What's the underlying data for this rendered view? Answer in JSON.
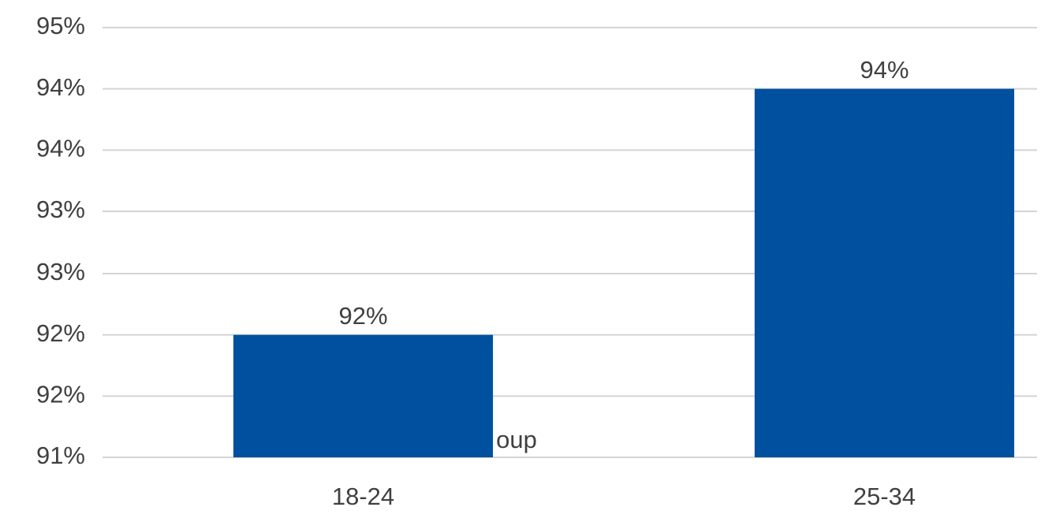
{
  "chart_data": {
    "type": "bar",
    "categories": [
      "18-24",
      "25-34"
    ],
    "values": [
      92.14,
      94.43
    ],
    "value_labels": [
      "92%",
      "94%"
    ],
    "color": "#0050a0",
    "ylim": [
      91,
      95
    ],
    "yticks": [
      {
        "value": 91,
        "label": "91%"
      },
      {
        "value": 91.57,
        "label": "92%"
      },
      {
        "value": 92.14,
        "label": "92%"
      },
      {
        "value": 92.71,
        "label": "93%"
      },
      {
        "value": 93.29,
        "label": "93%"
      },
      {
        "value": 93.86,
        "label": "94%"
      },
      {
        "value": 94.43,
        "label": "94%"
      },
      {
        "value": 95,
        "label": "95%"
      }
    ],
    "grid": true,
    "annotation": "oup"
  }
}
